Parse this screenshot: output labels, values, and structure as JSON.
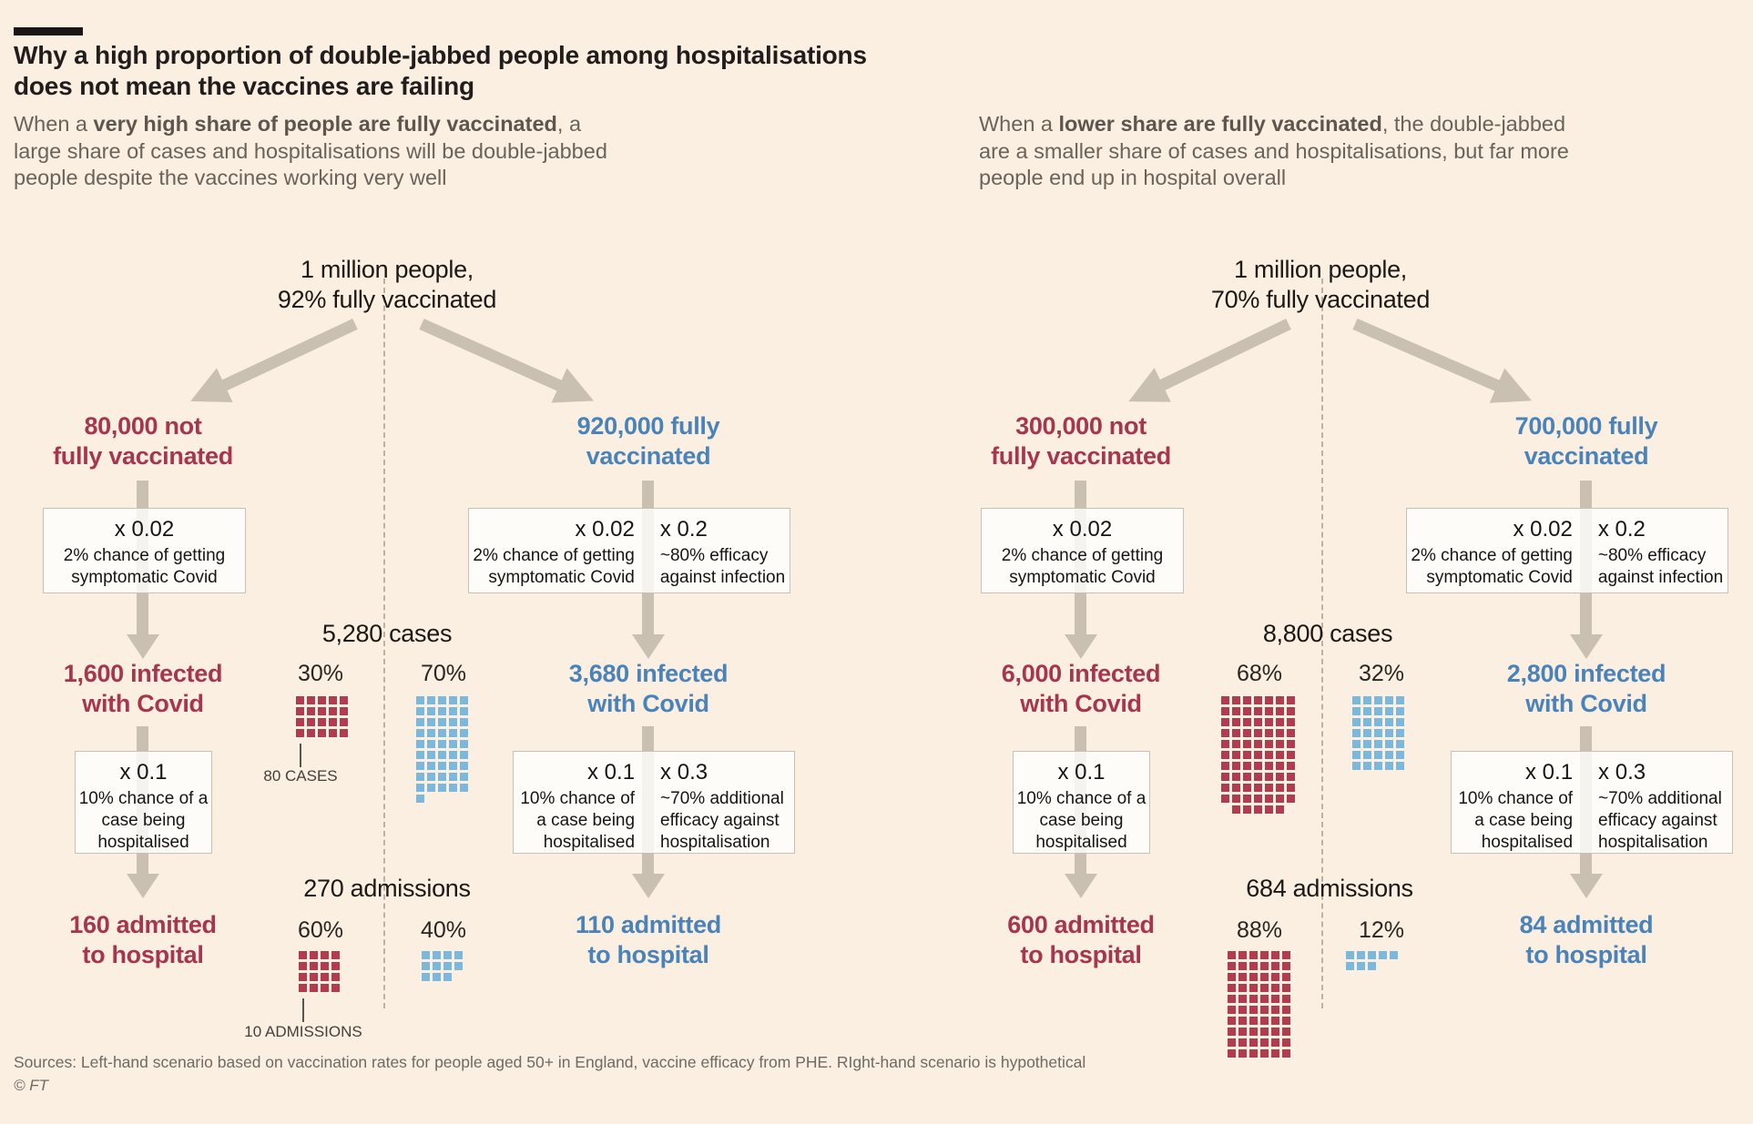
{
  "page": {
    "title_line1": "Why a high proportion of double-jabbed people among hospitalisations",
    "title_line2": "does not mean the vaccines are failing",
    "source_line": "Sources: Left-hand scenario based on vaccination rates for people aged 50+ in England, vaccine efficacy from PHE. RIght-hand scenario is hypothetical",
    "copyright": "© FT"
  },
  "colors": {
    "background": "#faefe0",
    "red_text": "#a6364e",
    "red_square": "#b23b4d",
    "blue_text": "#4a82ba",
    "blue_square": "#7cb7dc",
    "arrow": "#c9c0b1",
    "dashed_divider": "#bbb2a3",
    "title_text": "#211d1c",
    "intro_text": "#6b6259"
  },
  "intros": [
    {
      "prefix": "When a ",
      "bold": "very high share of people are fully vaccinated",
      "suffix": ", a large share of cases and hospitalisations will be double-jabbed people despite the vaccines working very well"
    },
    {
      "prefix": "When a ",
      "bold": "lower share are fully vaccinated",
      "suffix": ", the double-jabbed are a smaller share of cases and hospitalisations, but far more people end up in hospital overall"
    }
  ],
  "scenarios": [
    {
      "population_line1": "1 million people,",
      "population_line2": "92% fully vaccinated",
      "unvax": {
        "label_line1": "80,000 not",
        "label_line2": "fully vaccinated",
        "box1": {
          "factor": "x 0.02",
          "desc": "2% chance of getting symptomatic Covid"
        },
        "infected_line1": "1,600 infected",
        "infected_line2": "with Covid",
        "box2": {
          "factor": "x 0.1",
          "desc": "10% chance of a case being hospitalised"
        },
        "admitted_line1": "160 admitted",
        "admitted_line2": "to hospital"
      },
      "vax": {
        "label_line1": "920,000 fully",
        "label_line2": "vaccinated",
        "box1a": {
          "factor": "x 0.02",
          "desc": "2% chance of getting symptomatic Covid"
        },
        "box1b": {
          "factor": "x 0.2",
          "desc": "~80% efficacy against infection"
        },
        "infected_line1": "3,680 infected",
        "infected_line2": "with Covid",
        "box2a": {
          "factor": "x 0.1",
          "desc": "10% chance of a case being hospitalised"
        },
        "box2b": {
          "factor": "x 0.3",
          "desc": "~70% additional efficacy against hospitalisation"
        },
        "admitted_line1": "110 admitted",
        "admitted_line2": "to hospital"
      },
      "cases": {
        "title": "5,280 cases",
        "red_pct": "30%",
        "blue_pct": "70%",
        "annotation": "80 CASES",
        "red_waffle": {
          "rows": [
            [
              0,
              5
            ],
            [
              0,
              5
            ],
            [
              0,
              5
            ],
            [
              0,
              5
            ]
          ]
        },
        "blue_waffle": {
          "rows": [
            [
              0,
              5
            ],
            [
              0,
              5
            ],
            [
              0,
              5
            ],
            [
              0,
              5
            ],
            [
              0,
              5
            ],
            [
              0,
              5
            ],
            [
              0,
              5
            ],
            [
              0,
              5
            ],
            [
              0,
              5
            ],
            [
              0,
              1
            ]
          ]
        }
      },
      "admissions": {
        "title": "270 admissions",
        "red_pct": "60%",
        "blue_pct": "40%",
        "annotation": "10 ADMISSIONS",
        "red_waffle": {
          "rows": [
            [
              0,
              4
            ],
            [
              0,
              4
            ],
            [
              0,
              4
            ],
            [
              0,
              4
            ]
          ]
        },
        "blue_waffle": {
          "rows": [
            [
              0,
              4
            ],
            [
              0,
              4
            ],
            [
              0,
              3
            ]
          ]
        }
      }
    },
    {
      "population_line1": "1 million people,",
      "population_line2": "70% fully vaccinated",
      "unvax": {
        "label_line1": "300,000 not",
        "label_line2": "fully vaccinated",
        "box1": {
          "factor": "x 0.02",
          "desc": "2% chance of getting symptomatic Covid"
        },
        "infected_line1": "6,000 infected",
        "infected_line2": "with Covid",
        "box2": {
          "factor": "x 0.1",
          "desc": "10% chance of a case being hospitalised"
        },
        "admitted_line1": "600 admitted",
        "admitted_line2": "to hospital"
      },
      "vax": {
        "label_line1": "700,000 fully",
        "label_line2": "vaccinated",
        "box1a": {
          "factor": "x 0.02",
          "desc": "2% chance of getting symptomatic Covid"
        },
        "box1b": {
          "factor": "x 0.2",
          "desc": "~80% efficacy against infection"
        },
        "infected_line1": "2,800 infected",
        "infected_line2": "with Covid",
        "box2a": {
          "factor": "x 0.1",
          "desc": "10% chance of a case being hospitalised"
        },
        "box2b": {
          "factor": "x 0.3",
          "desc": "~70% additional efficacy against hospitalisation"
        },
        "admitted_line1": "84 admitted",
        "admitted_line2": "to hospital"
      },
      "cases": {
        "title": "8,800 cases",
        "red_pct": "68%",
        "blue_pct": "32%",
        "red_waffle": {
          "rows": [
            [
              0,
              7
            ],
            [
              0,
              7
            ],
            [
              0,
              7
            ],
            [
              0,
              7
            ],
            [
              0,
              7
            ],
            [
              0,
              7
            ],
            [
              0,
              7
            ],
            [
              0,
              7
            ],
            [
              0,
              7
            ],
            [
              0,
              7
            ],
            [
              1,
              5
            ]
          ]
        },
        "blue_waffle": {
          "rows": [
            [
              0,
              5
            ],
            [
              0,
              5
            ],
            [
              0,
              5
            ],
            [
              0,
              5
            ],
            [
              0,
              5
            ],
            [
              0,
              5
            ],
            [
              0,
              5
            ]
          ]
        }
      },
      "admissions": {
        "title": "684 admissions",
        "red_pct": "88%",
        "blue_pct": "12%",
        "red_waffle": {
          "rows": [
            [
              0,
              6
            ],
            [
              0,
              6
            ],
            [
              0,
              6
            ],
            [
              0,
              6
            ],
            [
              0,
              6
            ],
            [
              0,
              6
            ],
            [
              0,
              6
            ],
            [
              0,
              6
            ],
            [
              0,
              6
            ],
            [
              0,
              6
            ]
          ]
        },
        "blue_waffle": {
          "rows": [
            [
              0,
              5
            ],
            [
              0,
              3
            ]
          ]
        }
      }
    }
  ],
  "chart_data": [
    {
      "type": "flow+waffle",
      "scenario": "High vaccination (left)",
      "population": 1000000,
      "pct_fully_vaccinated": 92,
      "not_fully_vaccinated": 80000,
      "fully_vaccinated": 920000,
      "infected_unvaccinated": 1600,
      "infected_vaccinated": 3680,
      "admitted_unvaccinated": 160,
      "admitted_vaccinated": 110,
      "total_cases": 5280,
      "cases_split_pct": {
        "unvaccinated": 30,
        "vaccinated": 70
      },
      "total_admissions": 270,
      "admissions_split_pct": {
        "unvaccinated": 60,
        "vaccinated": 40
      },
      "square_value_cases": 80,
      "square_value_admissions": 10
    },
    {
      "type": "flow+waffle",
      "scenario": "Lower vaccination (right, hypothetical)",
      "population": 1000000,
      "pct_fully_vaccinated": 70,
      "not_fully_vaccinated": 300000,
      "fully_vaccinated": 700000,
      "infected_unvaccinated": 6000,
      "infected_vaccinated": 2800,
      "admitted_unvaccinated": 600,
      "admitted_vaccinated": 84,
      "total_cases": 8800,
      "cases_split_pct": {
        "unvaccinated": 68,
        "vaccinated": 32
      },
      "total_admissions": 684,
      "admissions_split_pct": {
        "unvaccinated": 88,
        "vaccinated": 12
      },
      "square_value_cases": 80,
      "square_value_admissions": 10
    }
  ]
}
